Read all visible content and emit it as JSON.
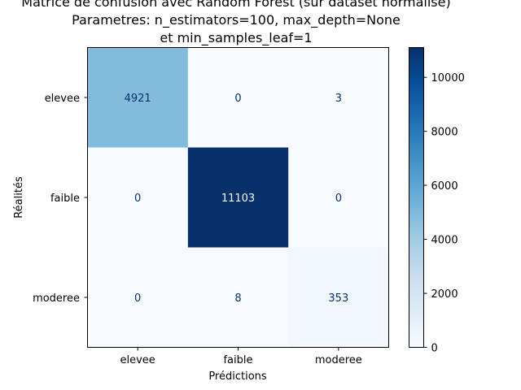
{
  "chart_data": {
    "type": "heatmap",
    "title_lines": [
      "Matrice de confusion avec Random Forest (sur dataset normalisé)",
      "Parametres: n_estimators=100, max_depth=None",
      "et min_samples_leaf=1"
    ],
    "xlabel": "Prédictions",
    "ylabel": "Réalités",
    "x_categories": [
      "elevee",
      "faible",
      "moderee"
    ],
    "y_categories": [
      "elevee",
      "faible",
      "moderee"
    ],
    "values": [
      [
        4921,
        0,
        3
      ],
      [
        0,
        11103,
        0
      ],
      [
        0,
        8,
        353
      ]
    ],
    "colormap": "Blues",
    "colorbar": {
      "min": 0,
      "max": 11103,
      "ticks": [
        "0",
        "2000",
        "4000",
        "6000",
        "8000",
        "10000"
      ]
    },
    "colors": {
      "low": "#f7fbff",
      "high": "#08306b",
      "text_dark": "#08306b",
      "text_light": "#f7fbff"
    }
  }
}
